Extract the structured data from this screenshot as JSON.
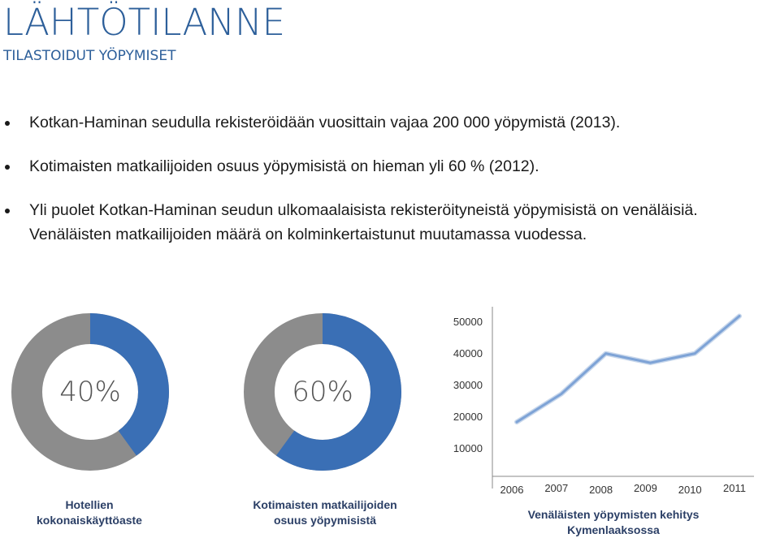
{
  "header": {
    "title": "LÄHTÖTILANNE",
    "subtitle": "TILASTOIDUT YÖPYMISET"
  },
  "bullets": [
    [
      "Kotkan-Haminan seudulla rekisteröidään vuosittain vajaa 200 000 yöpymistä (2013)."
    ],
    [
      "Kotimaisten matkailijoiden osuus yöpymisistä  on hieman yli 60 % (2012)."
    ],
    [
      "Yli puolet Kotkan-Haminan seudun ulkomaalaisista rekisteröityneistä yöpymisistä on  venäläisiä.",
      "Venäläisten matkailijoiden määrä on kolminkertaistunut muutamassa vuodessa."
    ]
  ],
  "colors": {
    "accent": "#3a6fb5",
    "track": "#8c8c8c",
    "title": "#2d5f9a",
    "caption": "#2b3f66"
  },
  "donuts": [
    {
      "label": "40%",
      "value": 40,
      "caption": [
        "Hotellien",
        "kokonaiskäyttöaste"
      ]
    },
    {
      "label": "60%",
      "value": 60,
      "caption": [
        "Kotimaisten matkailijoiden",
        "osuus yöpymisistä"
      ]
    }
  ],
  "chart_data": {
    "type": "line",
    "x": [
      "2006",
      "2007",
      "2008",
      "2009",
      "2010",
      "2011"
    ],
    "series": [
      {
        "values": [
          18000,
          27000,
          40000,
          37000,
          40000,
          52000
        ]
      }
    ],
    "yticks": [
      "50000",
      "40000",
      "30000",
      "20000",
      "10000"
    ],
    "ylim": [
      5000,
      55000
    ],
    "title_lines": [
      "Venäläisten yöpymisten kehitys",
      "Kymenlaaksossa"
    ],
    "grid": false,
    "line_color": "#7ea3d6"
  }
}
